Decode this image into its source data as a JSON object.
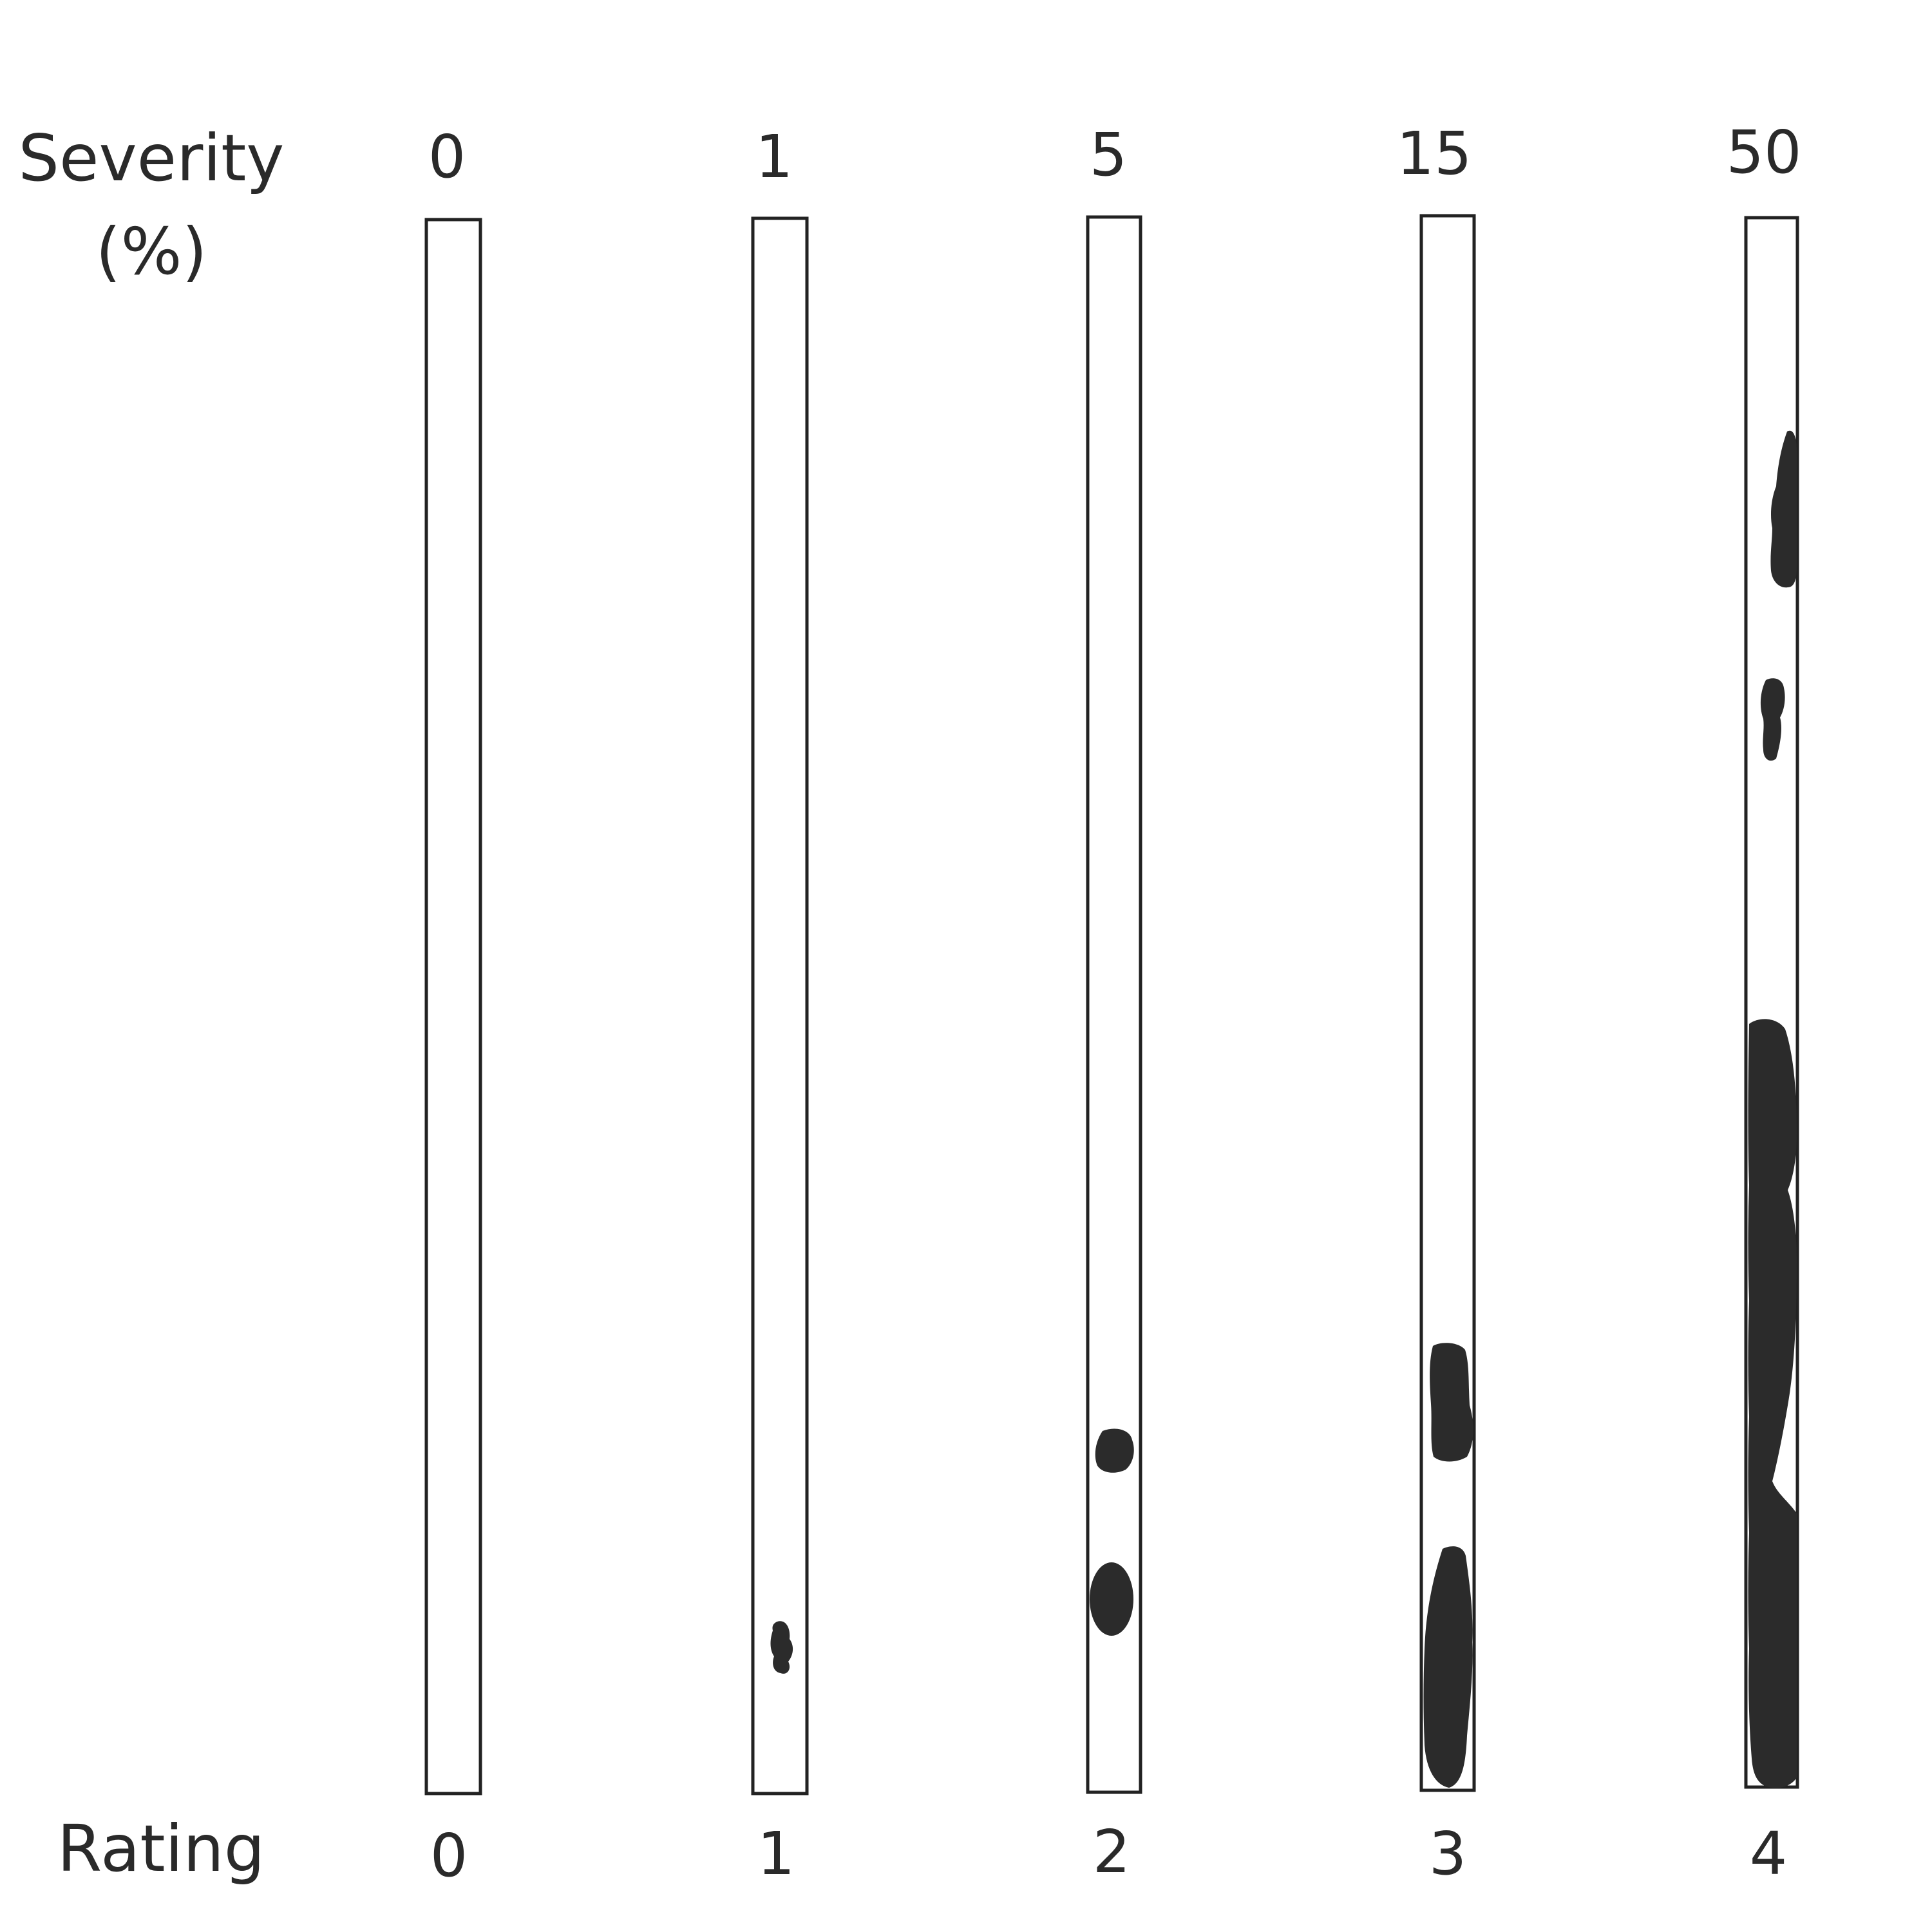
{
  "labels": {
    "severity_line1": "Severity",
    "severity_line2": "(%)",
    "rating": "Rating"
  },
  "colors": {
    "lesion": "#2b2b2b",
    "outline": "#222222",
    "background": "#ffffff"
  },
  "scale": [
    {
      "severity": "0",
      "rating": "0"
    },
    {
      "severity": "1",
      "rating": "1"
    },
    {
      "severity": "5",
      "rating": "2"
    },
    {
      "severity": "15",
      "rating": "3"
    },
    {
      "severity": "50",
      "rating": "4"
    }
  ]
}
